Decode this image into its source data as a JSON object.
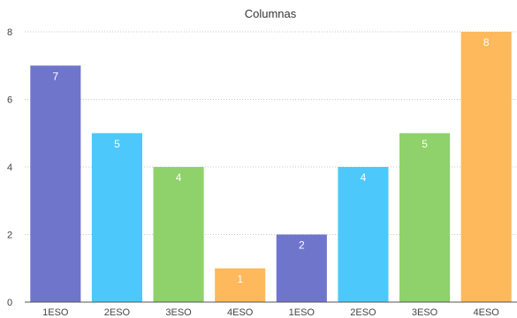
{
  "chart_data": {
    "type": "bar",
    "title": "Columnas",
    "xlabel": "",
    "ylabel": "",
    "ylim": [
      0,
      8
    ],
    "yticks": [
      0,
      2,
      4,
      6,
      8
    ],
    "grid": true,
    "categories": [
      "1ESO",
      "2ESO",
      "3ESO",
      "4ESO",
      "1ESO",
      "2ESO",
      "3ESO",
      "4ESO"
    ],
    "values": [
      7,
      5,
      4,
      1,
      2,
      4,
      5,
      8
    ],
    "colors": [
      "#7075cc",
      "#4dc8fa",
      "#8fd16a",
      "#fdb95c",
      "#7075cc",
      "#4dc8fa",
      "#8fd16a",
      "#fdb95c"
    ],
    "data_labels": [
      "7",
      "5",
      "4",
      "1",
      "2",
      "4",
      "5",
      "8"
    ]
  }
}
